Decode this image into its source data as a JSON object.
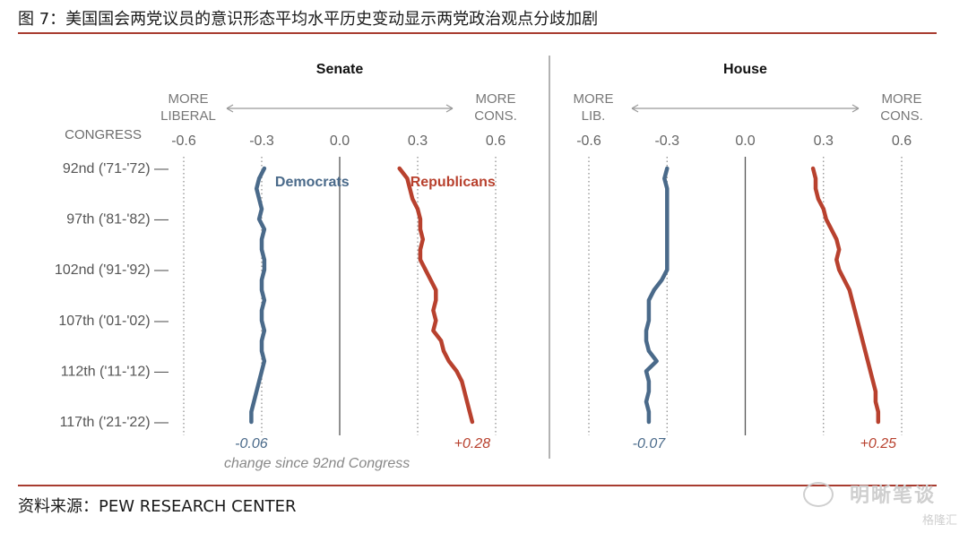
{
  "figure_title": "图 7：美国国会两党议员的意识形态平均水平历史变动显示两党政治观点分歧加剧",
  "source": "资料来源：PEW RESEARCH CENTER",
  "watermark": {
    "brand": "明晰笔谈",
    "site": "格隆汇"
  },
  "colors": {
    "democrat": "#4a6a8a",
    "republican": "#b8412e",
    "rule": "#a83c30"
  },
  "chart_data": {
    "type": "line",
    "congress_axis_title": "CONGRESS",
    "y_tick_labels": [
      "92nd ('71-'72) —",
      "97th ('81-'82) —",
      "102nd ('91-'92) —",
      "107th ('01-'02) —",
      "112th ('11-'12) —",
      "117th ('21-'22) —"
    ],
    "y_tick_congress": [
      92,
      97,
      102,
      107,
      112,
      117
    ],
    "y_range": [
      92,
      117
    ],
    "x_range": [
      -0.6,
      0.6
    ],
    "footnote": "change since 92nd Congress",
    "panels": [
      {
        "title": "Senate",
        "x_ticks": [
          "-0.6",
          "-0.3",
          "0.0",
          "0.3",
          "0.6"
        ],
        "left_label": [
          "MORE",
          "LIBERAL"
        ],
        "right_label": [
          "MORE",
          "CONS."
        ],
        "series": [
          {
            "name": "Democrats",
            "color_key": "democrat",
            "x": [
              92,
              93,
              94,
              95,
              96,
              97,
              98,
              99,
              100,
              101,
              102,
              103,
              104,
              105,
              106,
              107,
              108,
              109,
              110,
              111,
              112,
              113,
              114,
              115,
              116,
              117
            ],
            "values": [
              -0.29,
              -0.31,
              -0.32,
              -0.31,
              -0.3,
              -0.31,
              -0.29,
              -0.3,
              -0.3,
              -0.29,
              -0.29,
              -0.3,
              -0.3,
              -0.29,
              -0.3,
              -0.3,
              -0.29,
              -0.3,
              -0.3,
              -0.29,
              -0.3,
              -0.31,
              -0.32,
              -0.33,
              -0.34,
              -0.34
            ],
            "change": "-0.06"
          },
          {
            "name": "Republicans",
            "color_key": "republican",
            "x": [
              92,
              93,
              94,
              95,
              96,
              97,
              98,
              99,
              100,
              101,
              102,
              103,
              104,
              105,
              106,
              107,
              108,
              109,
              110,
              111,
              112,
              113,
              114,
              115,
              116,
              117
            ],
            "values": [
              0.23,
              0.26,
              0.27,
              0.28,
              0.3,
              0.31,
              0.31,
              0.32,
              0.31,
              0.31,
              0.33,
              0.35,
              0.37,
              0.37,
              0.36,
              0.37,
              0.36,
              0.39,
              0.4,
              0.42,
              0.45,
              0.47,
              0.48,
              0.49,
              0.5,
              0.51
            ],
            "change": "+0.28"
          }
        ]
      },
      {
        "title": "House",
        "x_ticks": [
          "-0.6",
          "-0.3",
          "0.0",
          "0.3",
          "0.6"
        ],
        "left_label": [
          "MORE",
          "LIB."
        ],
        "right_label": [
          "MORE",
          "CONS."
        ],
        "series": [
          {
            "name": "Democrats",
            "color_key": "democrat",
            "x": [
              92,
              93,
              94,
              95,
              96,
              97,
              98,
              99,
              100,
              101,
              102,
              103,
              104,
              105,
              106,
              107,
              108,
              109,
              110,
              111,
              112,
              113,
              114,
              115,
              116,
              117
            ],
            "values": [
              -0.3,
              -0.31,
              -0.3,
              -0.3,
              -0.3,
              -0.3,
              -0.3,
              -0.3,
              -0.3,
              -0.3,
              -0.3,
              -0.32,
              -0.35,
              -0.37,
              -0.37,
              -0.37,
              -0.38,
              -0.38,
              -0.37,
              -0.34,
              -0.38,
              -0.37,
              -0.37,
              -0.38,
              -0.37,
              -0.37
            ],
            "change": "-0.07"
          },
          {
            "name": "Republicans",
            "color_key": "republican",
            "x": [
              92,
              93,
              94,
              95,
              96,
              97,
              98,
              99,
              100,
              101,
              102,
              103,
              104,
              105,
              106,
              107,
              108,
              109,
              110,
              111,
              112,
              113,
              114,
              115,
              116,
              117
            ],
            "values": [
              0.26,
              0.27,
              0.27,
              0.28,
              0.3,
              0.31,
              0.33,
              0.35,
              0.36,
              0.35,
              0.36,
              0.38,
              0.4,
              0.41,
              0.42,
              0.43,
              0.44,
              0.45,
              0.46,
              0.47,
              0.48,
              0.49,
              0.5,
              0.5,
              0.51,
              0.51
            ],
            "change": "+0.25"
          }
        ]
      }
    ]
  }
}
